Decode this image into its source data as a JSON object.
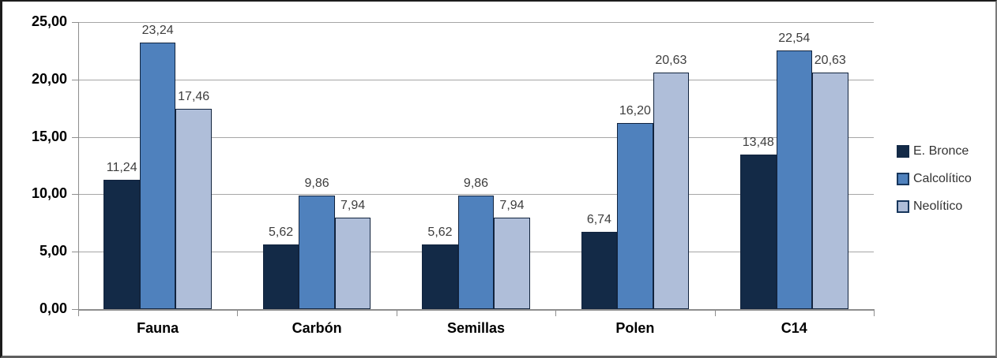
{
  "chart_data": {
    "type": "bar",
    "title": "",
    "categories": [
      "Fauna",
      "Carbón",
      "Semillas",
      "Polen",
      "C14"
    ],
    "series": [
      {
        "name": "E. Bronce",
        "color": "#132a47",
        "values": [
          11.24,
          5.62,
          5.62,
          6.74,
          13.48
        ],
        "labels": [
          "11,24",
          "5,62",
          "5,62",
          "6,74",
          "13,48"
        ]
      },
      {
        "name": "Calcolítico",
        "color": "#4f81bd",
        "values": [
          23.24,
          9.86,
          9.86,
          16.2,
          22.54
        ],
        "labels": [
          "23,24",
          "9,86",
          "9,86",
          "16,20",
          "22,54"
        ]
      },
      {
        "name": "Neolítico",
        "color": "#afbed9",
        "values": [
          17.46,
          7.94,
          7.94,
          20.63,
          20.63
        ],
        "labels": [
          "17,46",
          "7,94",
          "7,94",
          "20,63",
          "20,63"
        ]
      }
    ],
    "y_axis": {
      "min": 0,
      "max": 25,
      "step": 5,
      "tick_labels": [
        "0,00",
        "5,00",
        "10,00",
        "15,00",
        "20,00",
        "25,00"
      ]
    },
    "xlabel": "",
    "ylabel": "",
    "grid": true,
    "legend": {
      "position": "right",
      "entries": [
        "E. Bronce",
        "Calcolítico",
        "Neolítico"
      ]
    },
    "colors": {
      "bar_border": "#12243e",
      "gridline": "#a6a6a6",
      "axis": "#8e8e8e",
      "value_label_text": "#3d3d3d",
      "axis_label_text": "#000000",
      "legend_text": "#333333",
      "background": "#ffffff"
    }
  }
}
